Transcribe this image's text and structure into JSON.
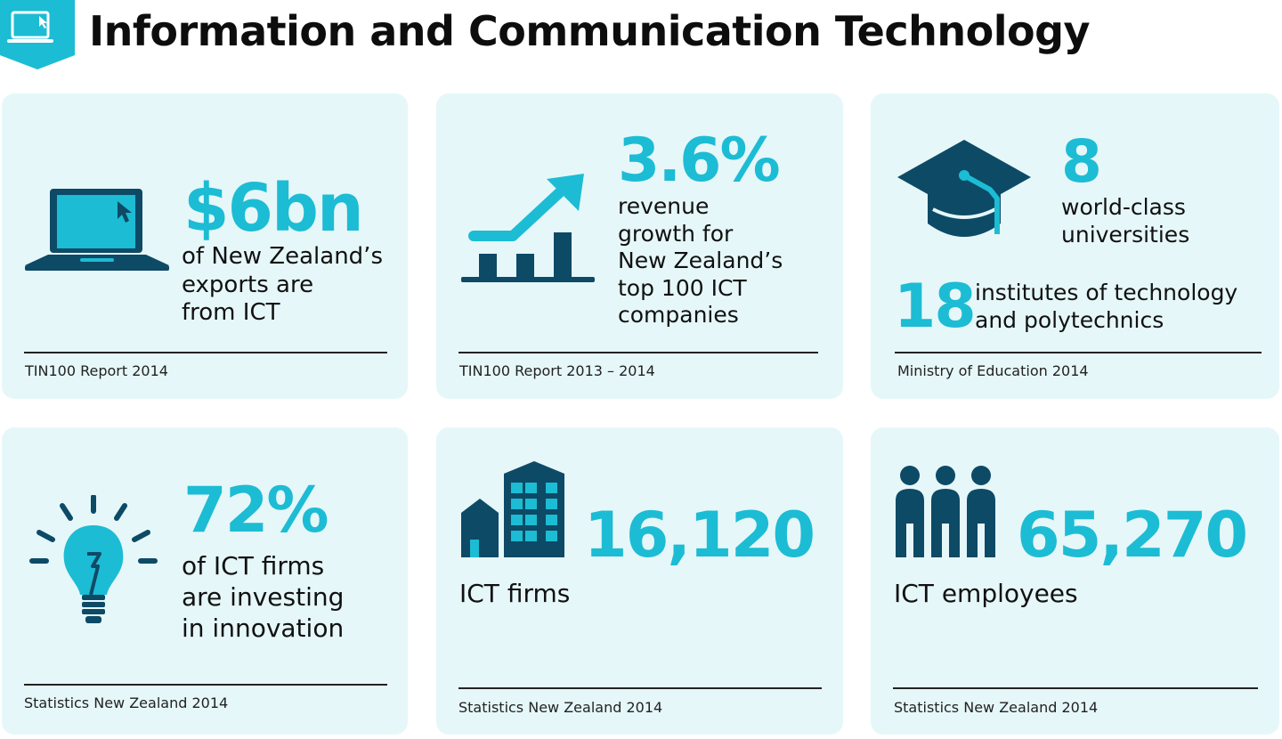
{
  "header": {
    "title": "Information and Communication Technology"
  },
  "colors": {
    "accent": "#1cbcd4",
    "dark": "#0d4a66",
    "card": "#e6f7f9"
  },
  "cards": [
    {
      "icon": "laptop-icon",
      "value": "$6bn",
      "lines": [
        "of New Zealand’s",
        "exports are",
        "from ICT"
      ],
      "source": "TIN100 Report 2014"
    },
    {
      "icon": "growth-chart-icon",
      "value": "3.6%",
      "lines": [
        "revenue",
        "growth for",
        "New Zealand’s",
        "top 100 ICT",
        "companies"
      ],
      "source": "TIN100 Report 2013 – 2014"
    },
    {
      "icon": "graduation-cap-icon",
      "value": "8",
      "lines": [
        "world-class",
        "universities"
      ],
      "value2": "18",
      "lines2": [
        "institutes of technology",
        "and polytechnics"
      ],
      "source": "Ministry of Education 2014"
    },
    {
      "icon": "lightbulb-icon",
      "value": "72%",
      "lines": [
        "of ICT firms",
        "are investing",
        "in innovation"
      ],
      "source": "Statistics New Zealand 2014"
    },
    {
      "icon": "buildings-icon",
      "value": "16,120",
      "lines": [
        "ICT firms"
      ],
      "source": "Statistics New Zealand 2014"
    },
    {
      "icon": "people-icon",
      "value": "65,270",
      "lines": [
        "ICT employees"
      ],
      "source": "Statistics New Zealand 2014"
    }
  ]
}
